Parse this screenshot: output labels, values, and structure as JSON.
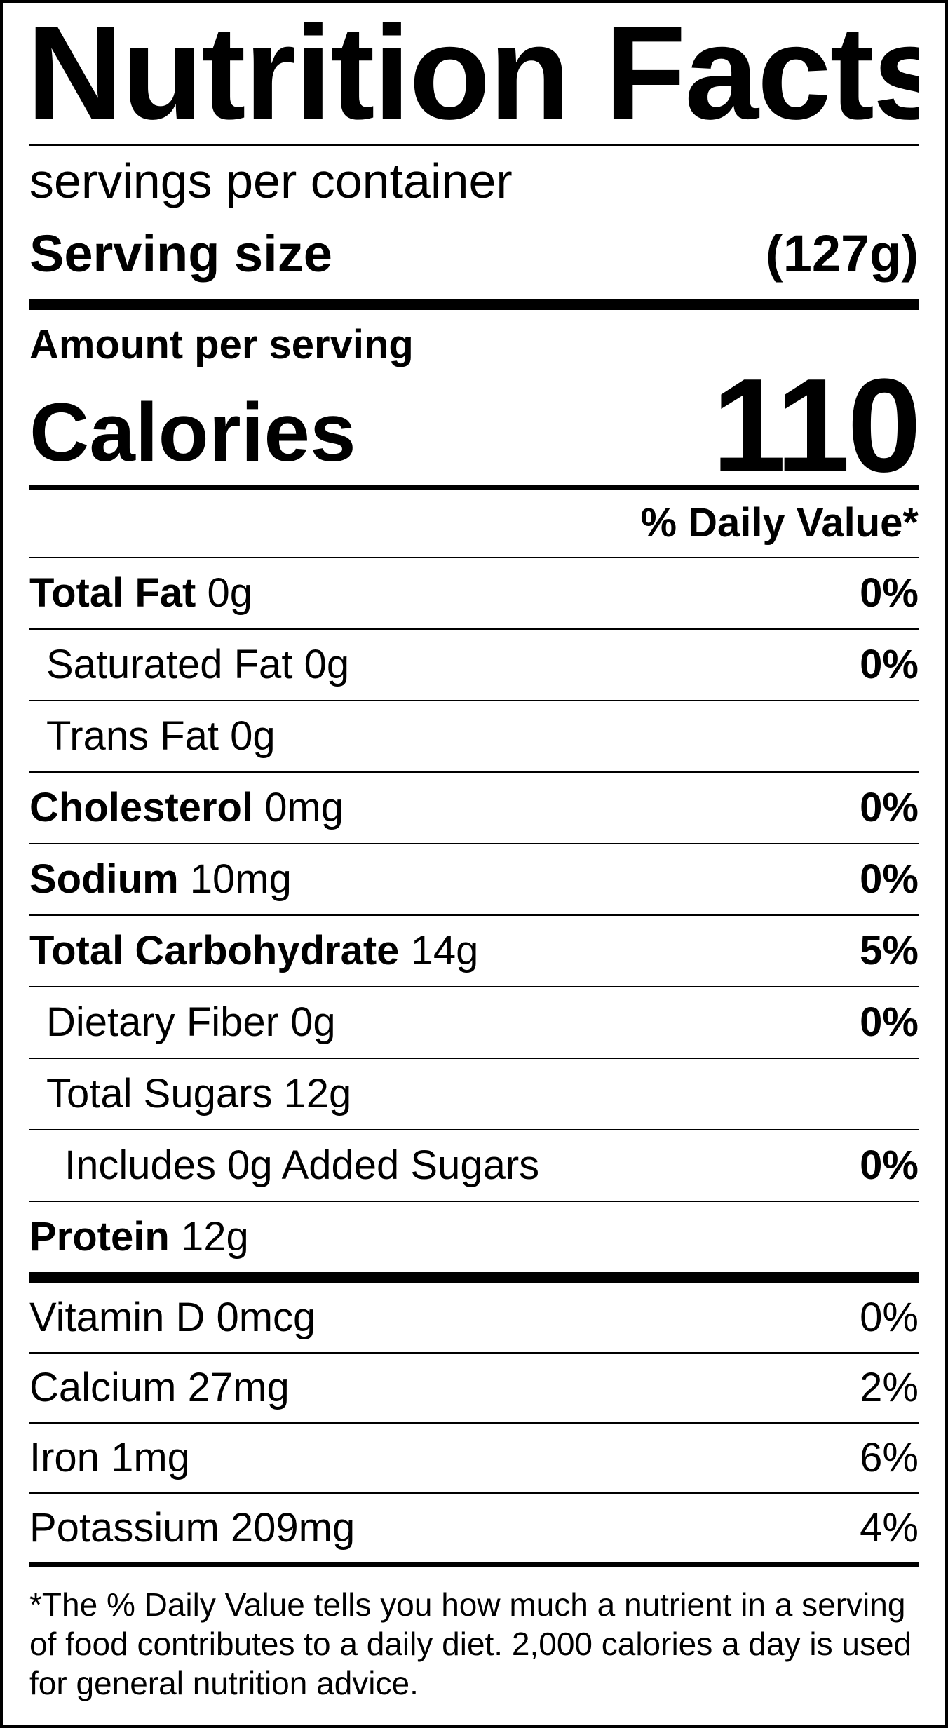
{
  "title": "Nutrition Facts",
  "servings_per_container": "servings per container",
  "serving_size": {
    "label": "Serving size",
    "value": "(127g)"
  },
  "amount_per_serving": "Amount per serving",
  "calories": {
    "label": "Calories",
    "value": "110"
  },
  "daily_value_header": "% Daily Value*",
  "nutrients": [
    {
      "name": "Total Fat",
      "amount": "0g",
      "dv": "0%"
    },
    {
      "name": "Saturated Fat",
      "amount": "0g",
      "dv": "0%"
    },
    {
      "name": "Trans Fat",
      "amount": "0g",
      "dv": ""
    },
    {
      "name": "Cholesterol",
      "amount": "0mg",
      "dv": "0%"
    },
    {
      "name": "Sodium",
      "amount": "10mg",
      "dv": "0%"
    },
    {
      "name": "Total Carbohydrate",
      "amount": "14g",
      "dv": "5%"
    },
    {
      "name": "Dietary Fiber",
      "amount": "0g",
      "dv": "0%"
    },
    {
      "name": "Total Sugars",
      "amount": "12g",
      "dv": ""
    },
    {
      "name": "Includes 0g Added Sugars",
      "amount": "",
      "dv": "0%"
    },
    {
      "name": "Protein",
      "amount": "12g",
      "dv": ""
    }
  ],
  "vitamins": [
    {
      "name": "Vitamin D",
      "amount": "0mcg",
      "dv": "0%"
    },
    {
      "name": "Calcium",
      "amount": "27mg",
      "dv": "2%"
    },
    {
      "name": "Iron",
      "amount": "1mg",
      "dv": "6%"
    },
    {
      "name": "Potassium",
      "amount": "209mg",
      "dv": "4%"
    }
  ],
  "footnote": "*The % Daily Value tells you how much a nutrient in a serving of food contributes to a daily diet. 2,000 calories a day is used for general nutrition advice."
}
